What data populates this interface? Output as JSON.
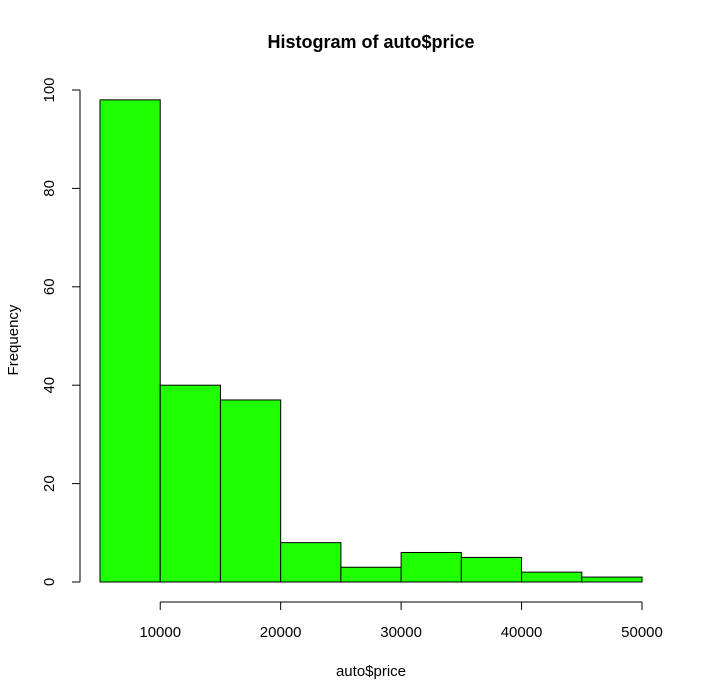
{
  "chart_data": {
    "type": "bar",
    "title": "Histogram of auto$price",
    "xlabel": "auto$price",
    "ylabel": "Frequency",
    "bar_color": "#1fff00",
    "edge_color": "#000000",
    "bins": [
      {
        "start": 5000,
        "end": 10000,
        "count": 98
      },
      {
        "start": 10000,
        "end": 15000,
        "count": 40
      },
      {
        "start": 15000,
        "end": 20000,
        "count": 37
      },
      {
        "start": 20000,
        "end": 25000,
        "count": 8
      },
      {
        "start": 25000,
        "end": 30000,
        "count": 3
      },
      {
        "start": 30000,
        "end": 35000,
        "count": 6
      },
      {
        "start": 35000,
        "end": 40000,
        "count": 5
      },
      {
        "start": 40000,
        "end": 45000,
        "count": 2
      },
      {
        "start": 45000,
        "end": 50000,
        "count": 1
      }
    ],
    "xlim": [
      5000,
      50000
    ],
    "ylim": [
      0,
      100
    ],
    "xticks": [
      {
        "value": 10000,
        "label": "10000"
      },
      {
        "value": 20000,
        "label": "20000"
      },
      {
        "value": 30000,
        "label": "30000"
      },
      {
        "value": 40000,
        "label": "40000"
      },
      {
        "value": 50000,
        "label": "50000"
      }
    ],
    "yticks": [
      {
        "value": 0,
        "label": "0"
      },
      {
        "value": 20,
        "label": "20"
      },
      {
        "value": 40,
        "label": "40"
      },
      {
        "value": 60,
        "label": "60"
      },
      {
        "value": 80,
        "label": "80"
      },
      {
        "value": 100,
        "label": "100"
      }
    ]
  }
}
